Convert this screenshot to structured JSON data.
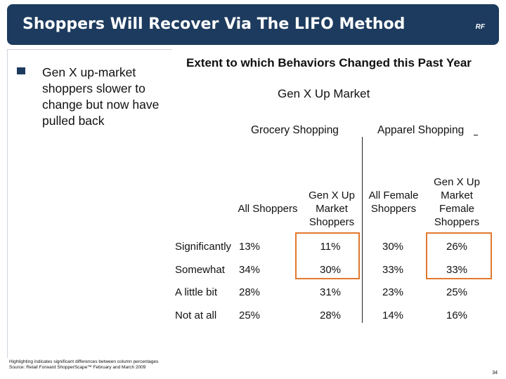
{
  "header": {
    "title": "Shoppers Will Recover Via The LIFO Method",
    "logo_text": "RF"
  },
  "sidebar": {
    "bullet": "Gen X up-market shoppers slower to change but now have pulled back"
  },
  "table": {
    "title": "Extent to which Behaviors Changed this Past Year",
    "segment": "Gen X Up Market",
    "groups": [
      "Grocery Shopping",
      "Apparel Shopping"
    ],
    "columns": [
      "All Shoppers",
      "Gen X Up Market Shoppers",
      "All Female Shoppers",
      "Gen X Up Market Female Shoppers"
    ],
    "rows": [
      {
        "label": "Significantly",
        "values": [
          "13%",
          "11%",
          "30%",
          "26%"
        ]
      },
      {
        "label": "Somewhat",
        "values": [
          "34%",
          "30%",
          "33%",
          "33%"
        ]
      },
      {
        "label": "A little bit",
        "values": [
          "28%",
          "31%",
          "23%",
          "25%"
        ]
      },
      {
        "label": "Not at all",
        "values": [
          "25%",
          "28%",
          "14%",
          "16%"
        ]
      }
    ],
    "highlight_color": "#e1782e"
  },
  "footer": {
    "note": "Highlighting indicates significant differences between column percentages",
    "source": "Source: Retail Forward ShopperScape™ February and March 2009",
    "page_number": "34"
  },
  "colors": {
    "header_bg": "#1d3b5e",
    "header_text": "#ffffff"
  }
}
